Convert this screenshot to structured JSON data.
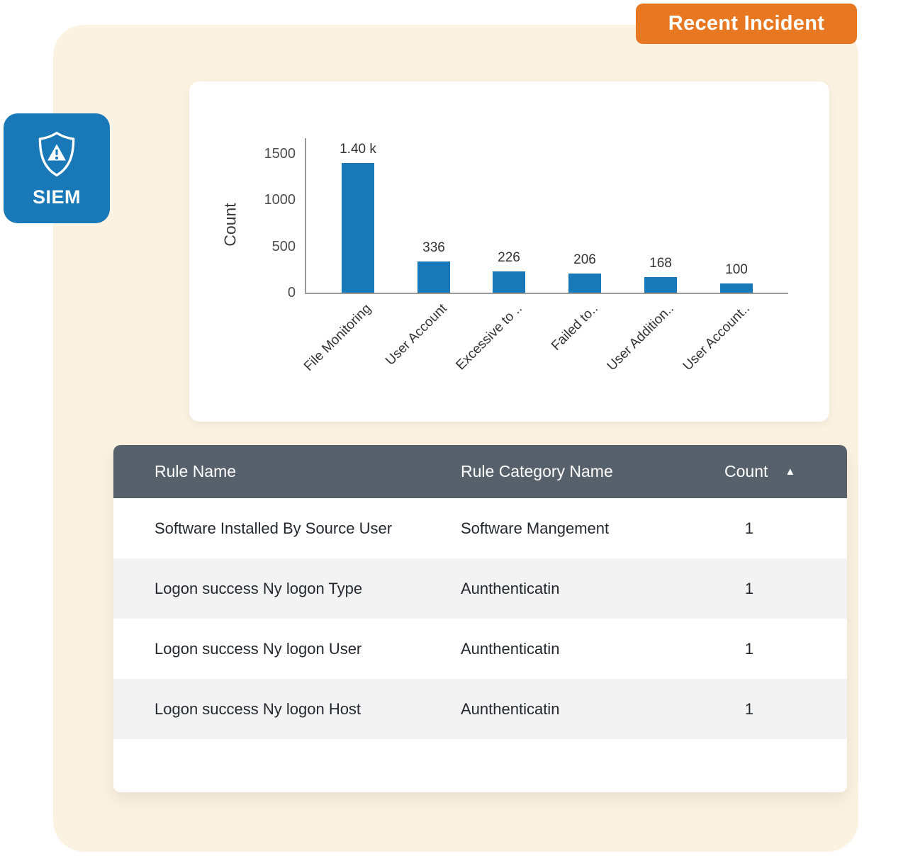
{
  "badge": {
    "label": "Recent Incident",
    "bg_color": "#E87722"
  },
  "siem_badge": {
    "label": "SIEM",
    "bg_color": "#1878B8",
    "icon": "shield-alert-icon"
  },
  "panel": {
    "bg_color": "#FBF2E1"
  },
  "chart_data": {
    "type": "bar",
    "title": "",
    "xlabel": "",
    "ylabel": "Count",
    "categories": [
      "File Monitoring",
      "User Account",
      "Excessive to ..",
      "Failed to..",
      "User Addition..",
      "User Account.."
    ],
    "values": [
      1400,
      336,
      226,
      206,
      168,
      100
    ],
    "value_labels": [
      "1.40 k",
      "336",
      "226",
      "206",
      "168",
      "100"
    ],
    "yticks": [
      0,
      500,
      1000,
      1500
    ],
    "ylim": [
      0,
      1500
    ],
    "bar_color": "#1878B8",
    "grid": false,
    "legend": false
  },
  "table": {
    "columns": [
      "Rule Name",
      "Rule Category Name",
      "Count"
    ],
    "sort_icon": "▲",
    "rows": [
      {
        "rule_name": "Software Installed By Source User",
        "category": "Software Mangement",
        "count": "1"
      },
      {
        "rule_name": "Logon success Ny logon Type",
        "category": "Aunthenticatin",
        "count": "1"
      },
      {
        "rule_name": "Logon success Ny logon User",
        "category": "Aunthenticatin",
        "count": "1"
      },
      {
        "rule_name": "Logon success Ny logon Host",
        "category": "Aunthenticatin",
        "count": "1"
      }
    ]
  }
}
